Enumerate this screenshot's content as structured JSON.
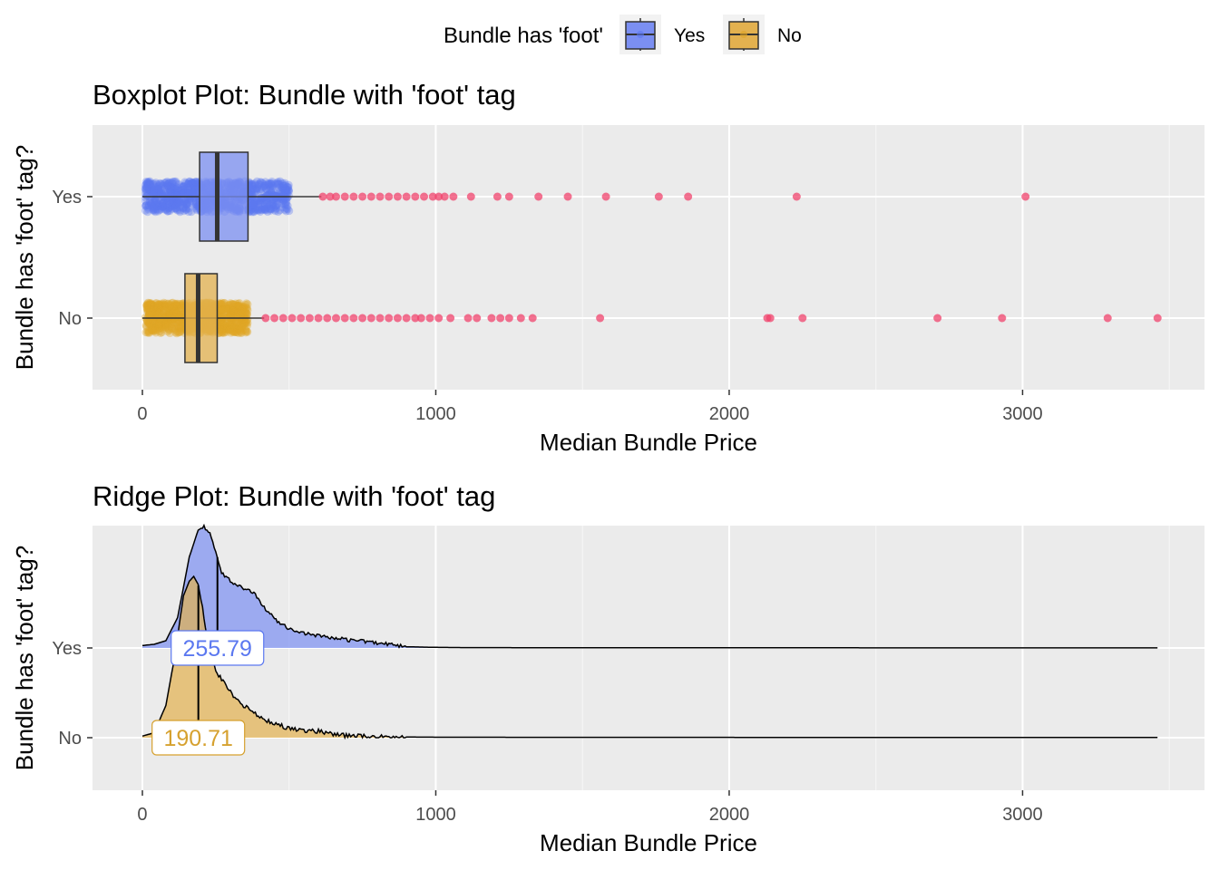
{
  "legend": {
    "title": "Bundle has 'foot'",
    "items": [
      {
        "label": "Yes",
        "fill": "#7b8ff2",
        "point": "#5b78f0"
      },
      {
        "label": "No",
        "fill": "#e3b14f",
        "point": "#e0a526"
      }
    ],
    "placement": "top"
  },
  "colors": {
    "outlier": "#f0436c",
    "panel_bg": "#ebebeb",
    "grid": "#ffffff",
    "yes_label": "#5b78f0",
    "no_label": "#d6a12f"
  },
  "chart_data": [
    {
      "type": "box",
      "title": "Boxplot Plot: Bundle with 'foot' tag",
      "xlabel": "Median Bundle Price",
      "ylabel": "Bundle has 'foot' tag?",
      "xlim": [
        -170,
        3620
      ],
      "xticks": [
        0,
        1000,
        2000,
        3000
      ],
      "xtick_labels": [
        "0",
        "1000",
        "2000",
        "3000"
      ],
      "categories": [
        "Yes",
        "No"
      ],
      "grid": true,
      "series": [
        {
          "name": "Yes",
          "whisker_low": 0,
          "q1": 195,
          "median": 255,
          "q3": 360,
          "whisker_high": 610,
          "jitter_range": [
            10,
            500
          ],
          "outliers": [
            615,
            640,
            660,
            690,
            720,
            750,
            780,
            810,
            840,
            870,
            900,
            930,
            960,
            990,
            1010,
            1030,
            1060,
            1120,
            1210,
            1250,
            1350,
            1450,
            1580,
            1760,
            1860,
            2230,
            3010
          ]
        },
        {
          "name": "No",
          "whisker_low": 0,
          "q1": 145,
          "median": 190,
          "q3": 255,
          "whisker_high": 415,
          "jitter_range": [
            10,
            360
          ],
          "outliers": [
            420,
            450,
            480,
            510,
            540,
            570,
            600,
            630,
            660,
            690,
            720,
            750,
            780,
            810,
            840,
            870,
            900,
            930,
            950,
            980,
            1010,
            1050,
            1110,
            1140,
            1190,
            1220,
            1250,
            1290,
            1330,
            1560,
            2130,
            2140,
            2250,
            2710,
            2930,
            3290,
            3460
          ]
        }
      ]
    },
    {
      "type": "ridge",
      "title": "Ridge Plot: Bundle with 'foot' tag",
      "xlabel": "Median Bundle Price",
      "ylabel": "Bundle has 'foot' tag?",
      "xlim": [
        -170,
        3620
      ],
      "xticks": [
        0,
        1000,
        2000,
        3000
      ],
      "xtick_labels": [
        "0",
        "1000",
        "2000",
        "3000"
      ],
      "categories": [
        "Yes",
        "No"
      ],
      "grid": true,
      "series": [
        {
          "name": "Yes",
          "median": 255.79,
          "median_label": "255.79",
          "x": [
            0,
            40,
            80,
            120,
            160,
            190,
            210,
            230,
            250,
            270,
            300,
            340,
            380,
            420,
            460,
            500,
            540,
            600,
            660,
            720,
            780,
            840,
            900,
            1000,
            1100,
            1500,
            2000,
            2500,
            3000,
            3460
          ],
          "density": [
            0.02,
            0.03,
            0.06,
            0.25,
            0.75,
            0.97,
            1.0,
            0.95,
            0.8,
            0.62,
            0.55,
            0.5,
            0.45,
            0.32,
            0.22,
            0.16,
            0.13,
            0.1,
            0.08,
            0.06,
            0.05,
            0.03,
            0.01,
            0.005,
            0.003,
            0.002,
            0.002,
            0.001,
            0.001,
            0.001
          ]
        },
        {
          "name": "No",
          "median": 190.71,
          "median_label": "190.71",
          "x": [
            0,
            40,
            80,
            110,
            140,
            160,
            175,
            190,
            205,
            220,
            250,
            290,
            330,
            380,
            430,
            480,
            540,
            600,
            650,
            700,
            800,
            1000,
            1500,
            2000,
            2500,
            3000,
            3460
          ],
          "density": [
            0.01,
            0.03,
            0.2,
            0.5,
            0.88,
            0.97,
            1.0,
            0.95,
            0.8,
            0.62,
            0.42,
            0.3,
            0.22,
            0.15,
            0.1,
            0.07,
            0.05,
            0.04,
            0.02,
            0.01,
            0.005,
            0.003,
            0.002,
            0.002,
            0.001,
            0.001,
            0.001
          ]
        }
      ]
    }
  ]
}
